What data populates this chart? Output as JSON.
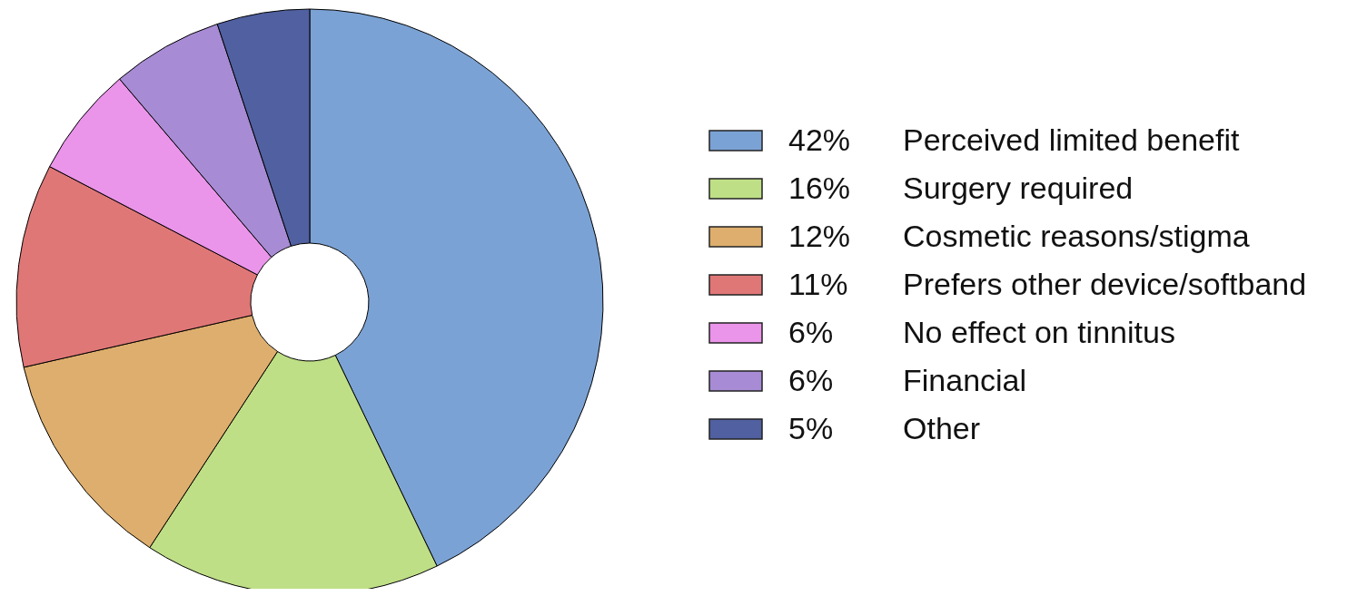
{
  "chart_data": {
    "type": "donut",
    "categories": [
      "Perceived limited benefit",
      "Surgery required",
      "Cosmetic reasons/stigma",
      "Prefers other device/softband",
      "No effect on tinnitus",
      "Financial",
      "Other"
    ],
    "values": [
      42,
      16,
      12,
      11,
      6,
      6,
      5
    ],
    "value_labels": [
      "42%",
      "16%",
      "12%",
      "11%",
      "6%",
      "6%",
      "5%"
    ],
    "colors": [
      "#7ba2d4",
      "#bfdf86",
      "#ddae6d",
      "#e07777",
      "#ea94ea",
      "#a78bd4",
      "#5060a0"
    ],
    "legend": "right"
  }
}
